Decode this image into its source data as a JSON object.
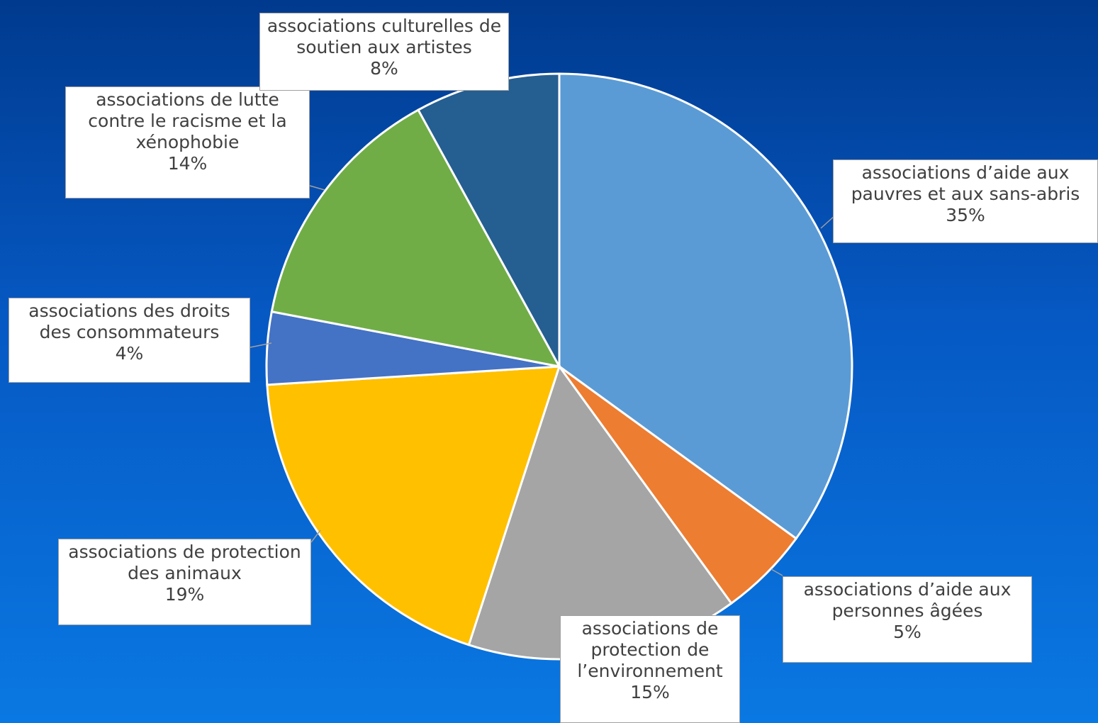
{
  "chart_data": {
    "type": "pie",
    "categories": [
      "associations d’aide aux pauvres et aux sans-abris",
      "associations d’aide aux personnes âgées",
      "associations de protection de l’environnement",
      "associations de protection des animaux",
      "associations des droits des consommateurs",
      "associations de lutte contre le racisme et la xénophobie",
      "associations culturelles de soutien aux artistes"
    ],
    "values": [
      35,
      5,
      15,
      19,
      4,
      14,
      8
    ],
    "value_labels": [
      "35%",
      "5%",
      "15%",
      "19%",
      "4%",
      "14%",
      "8%"
    ],
    "colors": [
      "#5b9bd5",
      "#ed7d31",
      "#a5a5a5",
      "#ffc000",
      "#4472c4",
      "#70ad47",
      "#255e91"
    ]
  }
}
